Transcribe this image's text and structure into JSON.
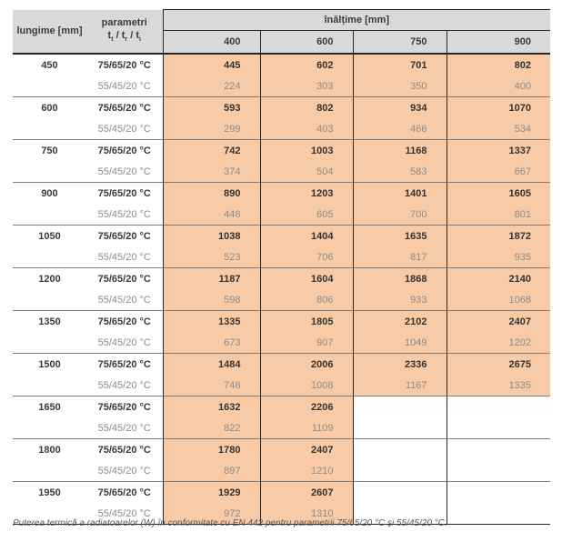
{
  "table": {
    "col1_header": "lungime [mm]",
    "params_header": {
      "title": "parametri",
      "sep": " / ",
      "parts": [
        {
          "base": "t",
          "sub": "t"
        },
        {
          "base": "t",
          "sub": "r"
        },
        {
          "base": "t",
          "sub": "i"
        }
      ]
    },
    "height_header": "înălțime [mm]",
    "heights": [
      "400",
      "600",
      "750",
      "900"
    ],
    "param_hot": "75/65/20 °C",
    "param_cold": "55/45/20 °C",
    "rows": [
      {
        "length": "450",
        "hot": [
          "445",
          "602",
          "701",
          "802"
        ],
        "cold": [
          "224",
          "303",
          "350",
          "400"
        ]
      },
      {
        "length": "600",
        "hot": [
          "593",
          "802",
          "934",
          "1070"
        ],
        "cold": [
          "299",
          "403",
          "466",
          "534"
        ]
      },
      {
        "length": "750",
        "hot": [
          "742",
          "1003",
          "1168",
          "1337"
        ],
        "cold": [
          "374",
          "504",
          "583",
          "667"
        ]
      },
      {
        "length": "900",
        "hot": [
          "890",
          "1203",
          "1401",
          "1605"
        ],
        "cold": [
          "448",
          "605",
          "700",
          "801"
        ]
      },
      {
        "length": "1050",
        "hot": [
          "1038",
          "1404",
          "1635",
          "1872"
        ],
        "cold": [
          "523",
          "706",
          "817",
          "935"
        ]
      },
      {
        "length": "1200",
        "hot": [
          "1187",
          "1604",
          "1868",
          "2140"
        ],
        "cold": [
          "598",
          "806",
          "933",
          "1068"
        ]
      },
      {
        "length": "1350",
        "hot": [
          "1335",
          "1805",
          "2102",
          "2407"
        ],
        "cold": [
          "673",
          "907",
          "1049",
          "1202"
        ]
      },
      {
        "length": "1500",
        "hot": [
          "1484",
          "2006",
          "2336",
          "2675"
        ],
        "cold": [
          "748",
          "1008",
          "1167",
          "1335"
        ]
      },
      {
        "length": "1650",
        "hot": [
          "1632",
          "2206",
          "",
          ""
        ],
        "cold": [
          "822",
          "1109",
          "",
          ""
        ]
      },
      {
        "length": "1800",
        "hot": [
          "1780",
          "2407",
          "",
          ""
        ],
        "cold": [
          "897",
          "1210",
          "",
          ""
        ]
      },
      {
        "length": "1950",
        "hot": [
          "1929",
          "2607",
          "",
          ""
        ],
        "cold": [
          "972",
          "1310",
          "",
          ""
        ]
      }
    ]
  },
  "footer": "Puterea termică a radiatoarelor (W) în conformitate cu EN 442 pentru parametrii 75/65/20 °C și 55/45/20 °C.",
  "colors": {
    "cell_orange": "#f8cba6",
    "header_gray": "#d9d9d9",
    "border_dark": "#262626",
    "group_separator": "#7d7d7d",
    "text_dark": "#3a3a39",
    "text_gray": "#8c8c8c"
  }
}
